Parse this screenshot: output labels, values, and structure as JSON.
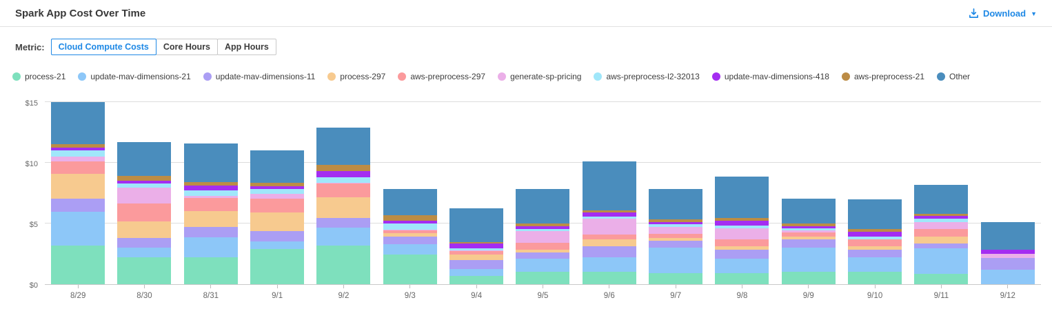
{
  "header": {
    "title": "Spark App Cost Over Time",
    "download_label": "Download"
  },
  "metric": {
    "label": "Metric:",
    "options": [
      {
        "label": "Cloud Compute Costs",
        "active": true
      },
      {
        "label": "Core Hours",
        "active": false
      },
      {
        "label": "App Hours",
        "active": false
      }
    ]
  },
  "colors": {
    "accent": "#1e88e5",
    "gridline": "#dcdcdc",
    "axis_text": "#666666"
  },
  "chart_data": {
    "type": "bar",
    "stacked": true,
    "title": "Spark App Cost Over Time",
    "xlabel": "",
    "ylabel": "Cloud Compute Costs ($)",
    "ylim": [
      0,
      15
    ],
    "ytick_values": [
      0,
      5,
      10,
      15
    ],
    "ytick_labels": [
      "$0",
      "$5",
      "$10",
      "$15"
    ],
    "grid": true,
    "legend_position": "top",
    "categories": [
      "8/29",
      "8/30",
      "8/31",
      "9/1",
      "9/2",
      "9/3",
      "9/4",
      "9/5",
      "9/6",
      "9/7",
      "9/8",
      "9/9",
      "9/10",
      "9/11",
      "9/12"
    ],
    "series": [
      {
        "name": "process-21",
        "color": "#7ee0bd",
        "values": [
          3.18,
          2.23,
          2.23,
          2.92,
          3.19,
          2.46,
          0.71,
          1.05,
          1.05,
          0.9,
          0.9,
          1.05,
          1.05,
          0.86,
          0
        ]
      },
      {
        "name": "update-mav-dimensions-21",
        "color": "#8dc7f8",
        "values": [
          2.81,
          0.8,
          1.62,
          0.59,
          1.49,
          0.82,
          0.57,
          1.03,
          1.14,
          2.13,
          1.18,
          1.98,
          1.14,
          2.1,
          1.18
        ]
      },
      {
        "name": "update-mav-dimensions-11",
        "color": "#ab9ef4",
        "values": [
          1.03,
          0.77,
          0.86,
          0.86,
          0.8,
          0.63,
          0.72,
          0.53,
          0.96,
          0.53,
          0.76,
          0.69,
          0.65,
          0.42,
          0.96
        ]
      },
      {
        "name": "process-297",
        "color": "#f7ca8f",
        "values": [
          2.05,
          1.37,
          1.3,
          1.55,
          1.71,
          0.32,
          0.42,
          0.23,
          0.57,
          0.23,
          0.31,
          0.19,
          0.31,
          0.57,
          0
        ]
      },
      {
        "name": "aws-preprocess-297",
        "color": "#fb9a9c",
        "values": [
          1.03,
          1.49,
          1.09,
          1.12,
          1.11,
          0.23,
          0.29,
          0.58,
          0.38,
          0.34,
          0.57,
          0.38,
          0.57,
          0.61,
          0
        ]
      },
      {
        "name": "generate-sp-pricing",
        "color": "#ebafe8",
        "values": [
          0.42,
          1.3,
          0.19,
          0.4,
          0.05,
          0.05,
          0.1,
          0.95,
          1.28,
          0.61,
          0.9,
          0.14,
          0,
          0.57,
          0.38
        ]
      },
      {
        "name": "aws-preprocess-l2-32013",
        "color": "#a0e7fa",
        "values": [
          0.49,
          0.36,
          0.44,
          0.42,
          0.46,
          0.51,
          0.15,
          0.19,
          0.19,
          0.19,
          0.19,
          0.19,
          0.23,
          0.25,
          0
        ]
      },
      {
        "name": "update-mav-dimensions-418",
        "color": "#a42df1",
        "values": [
          0.23,
          0.21,
          0.42,
          0.19,
          0.5,
          0.21,
          0.38,
          0.25,
          0.33,
          0.21,
          0.44,
          0.19,
          0.38,
          0.25,
          0.32
        ]
      },
      {
        "name": "aws-preprocess-21",
        "color": "#bc8c45",
        "values": [
          0.3,
          0.42,
          0.29,
          0.29,
          0.51,
          0.46,
          0.13,
          0.19,
          0.19,
          0.23,
          0.23,
          0.19,
          0.23,
          0.19,
          0
        ]
      },
      {
        "name": "Other",
        "color": "#4a8dbd",
        "values": [
          3.46,
          2.75,
          3.18,
          2.69,
          3.11,
          2.16,
          2.77,
          2.86,
          4.01,
          2.48,
          3.37,
          2.08,
          2.41,
          2.4,
          2.29
        ]
      }
    ]
  }
}
